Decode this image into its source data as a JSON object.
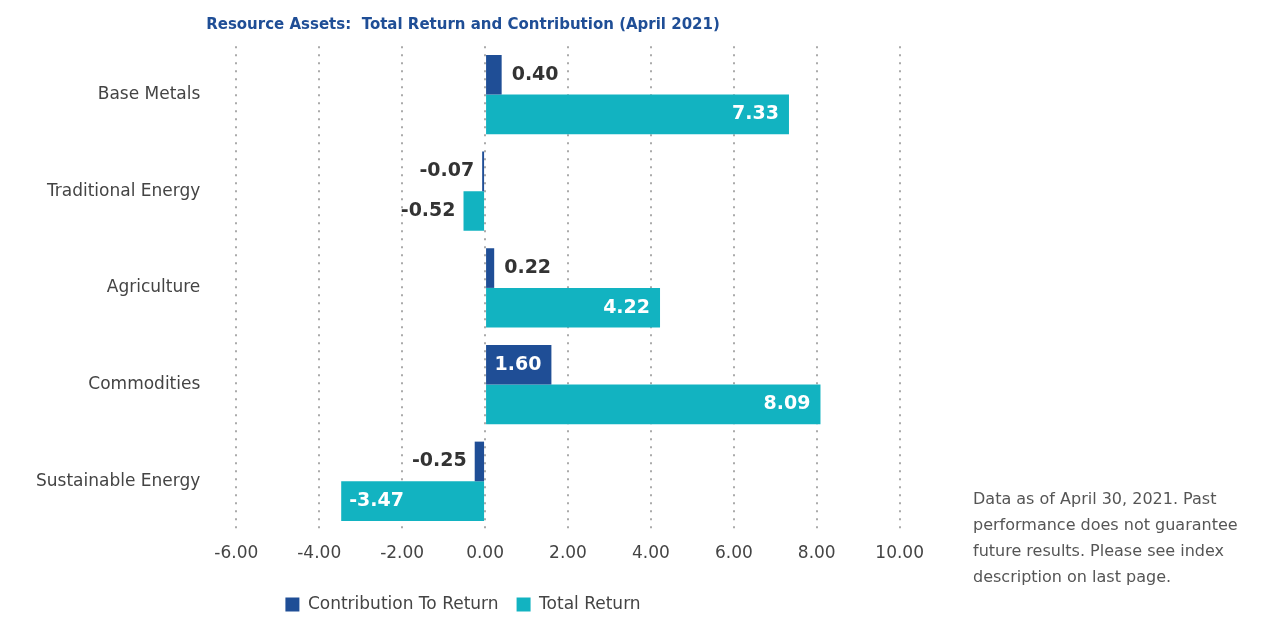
{
  "chart_data": {
    "type": "bar",
    "orientation": "horizontal",
    "title": "Resource Assets:  Total Return and Contribution (April 2021)",
    "categories": [
      "Base Metals",
      "Traditional Energy",
      "Agriculture",
      "Commodities",
      "Sustainable Energy"
    ],
    "series": [
      {
        "name": "Contribution To Return",
        "color": "#1f4e96",
        "values": [
          0.4,
          -0.07,
          0.22,
          1.6,
          -0.25
        ],
        "value_labels": [
          "0.40",
          "-0.07",
          "0.22",
          "1.60",
          "-0.25"
        ]
      },
      {
        "name": "Total Return",
        "color": "#12b3c1",
        "values": [
          7.33,
          -0.52,
          4.22,
          8.09,
          -3.47
        ],
        "value_labels": [
          "7.33",
          "-0.52",
          "4.22",
          "8.09",
          "-3.47"
        ]
      }
    ],
    "xlim": [
      -6,
      10
    ],
    "xticks": [
      {
        "value": -6,
        "label": "-6.00"
      },
      {
        "value": -4,
        "label": "-4.00"
      },
      {
        "value": -2,
        "label": "-2.00"
      },
      {
        "value": 0,
        "label": "0.00"
      },
      {
        "value": 2,
        "label": "2.00"
      },
      {
        "value": 4,
        "label": "4.00"
      },
      {
        "value": 6,
        "label": "6.00"
      },
      {
        "value": 8,
        "label": "8.00"
      },
      {
        "value": 10,
        "label": "10.00"
      }
    ],
    "grid": "x",
    "legend": "bottom",
    "annotations": [
      "Data as of April 30, 2021.  Past performance does not guarantee future results. Please see index description on last page."
    ]
  }
}
